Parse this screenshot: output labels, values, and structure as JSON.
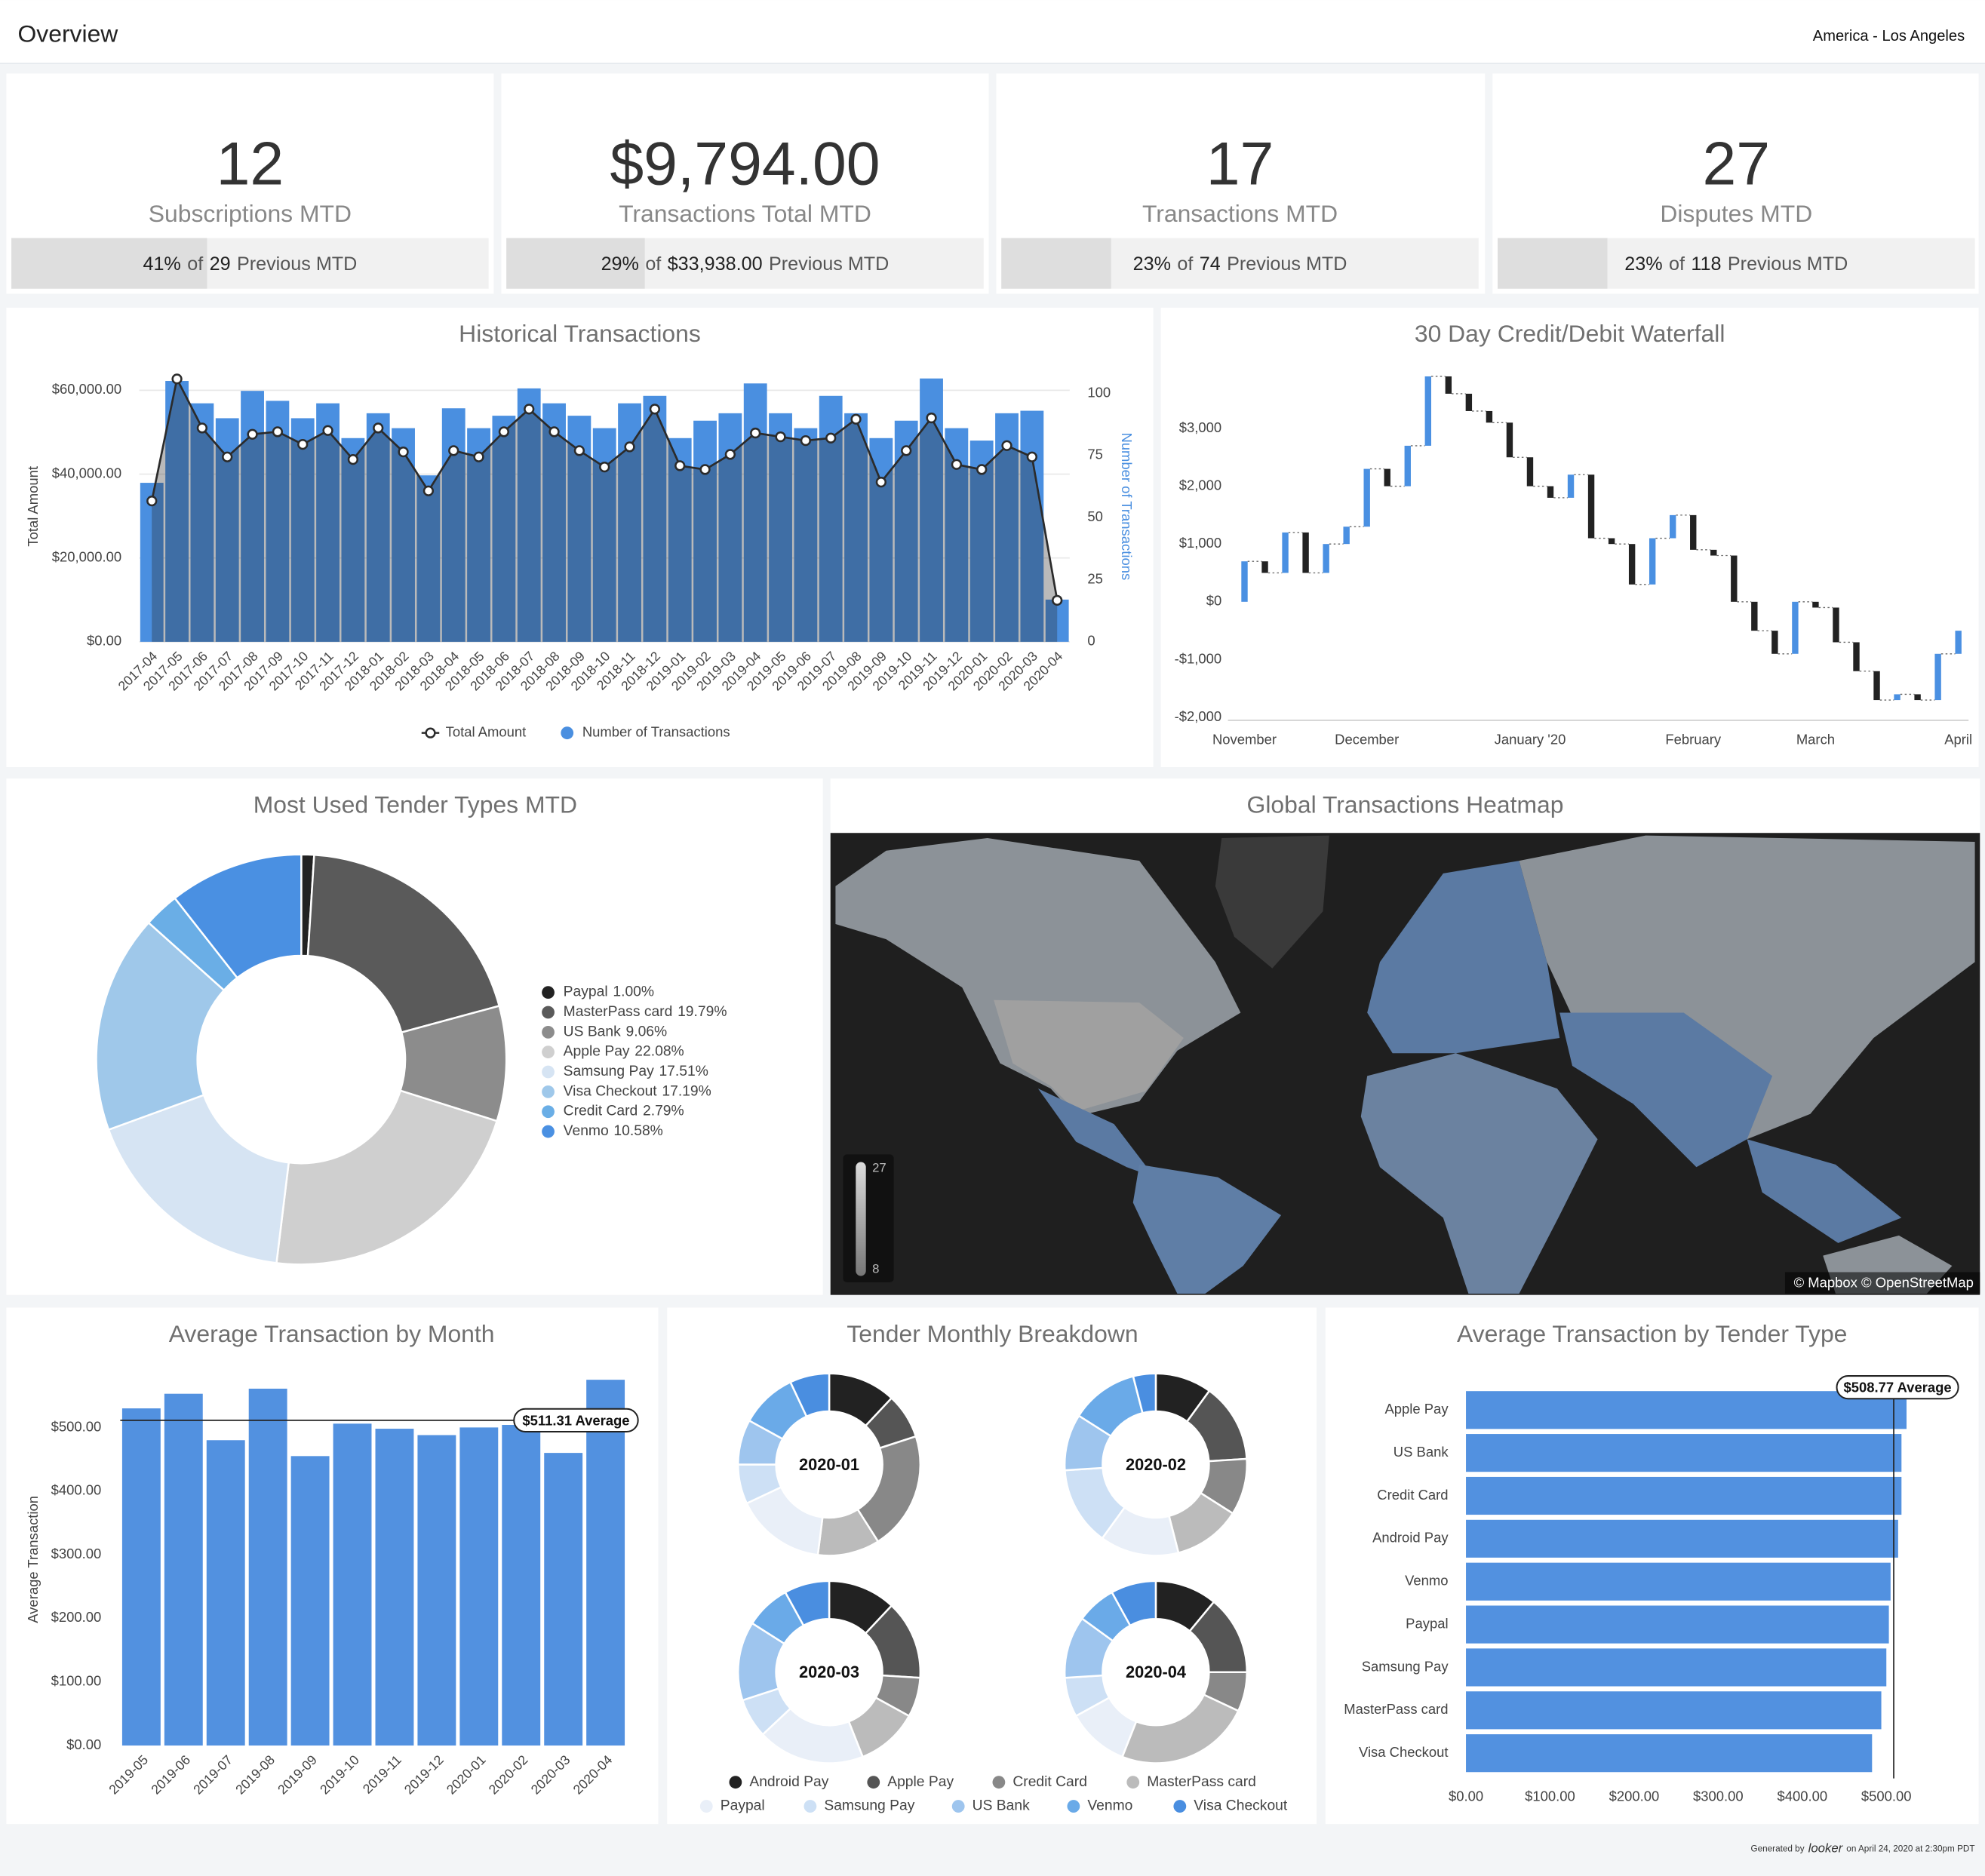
{
  "header": {
    "title": "Overview",
    "timezone": "America - Los Angeles"
  },
  "kpis": [
    {
      "value": "12",
      "label": "Subscriptions MTD",
      "percent": {
        "value": 41,
        "label": "41%"
      },
      "of": "of",
      "previous": "29",
      "suffix": "Previous MTD"
    },
    {
      "value": "$9,794.00",
      "label": "Transactions Total MTD",
      "percent": {
        "value": 29,
        "label": "29%"
      },
      "of": "of",
      "previous": "$33,938.00",
      "suffix": "Previous MTD"
    },
    {
      "value": "17",
      "label": "Transactions MTD",
      "percent": {
        "value": 23,
        "label": "23%"
      },
      "of": "of",
      "previous": "74",
      "suffix": "Previous MTD"
    },
    {
      "value": "27",
      "label": "Disputes MTD",
      "percent": {
        "value": 23,
        "label": "23%"
      },
      "of": "of",
      "previous": "118",
      "suffix": "Previous MTD"
    }
  ],
  "chart_data": [
    {
      "type": "combo",
      "title": "Historical Transactions",
      "categories": [
        "2017-04",
        "2017-05",
        "2017-06",
        "2017-07",
        "2017-08",
        "2017-09",
        "2017-10",
        "2017-11",
        "2017-12",
        "2018-01",
        "2018-02",
        "2018-03",
        "2018-04",
        "2018-05",
        "2018-06",
        "2018-07",
        "2018-08",
        "2018-09",
        "2018-10",
        "2018-11",
        "2018-12",
        "2019-01",
        "2019-02",
        "2019-03",
        "2019-04",
        "2019-05",
        "2019-06",
        "2019-07",
        "2019-08",
        "2019-09",
        "2019-10",
        "2019-11",
        "2019-12",
        "2020-01",
        "2020-02",
        "2020-03",
        "2020-04"
      ],
      "series": [
        {
          "name": "Total Amount",
          "type": "line",
          "color": "#2b2b2b",
          "values": [
            33600,
            62700,
            51000,
            44100,
            49500,
            50100,
            47100,
            50400,
            43500,
            51000,
            45300,
            36000,
            45600,
            44100,
            50100,
            55500,
            50100,
            45600,
            41700,
            46500,
            55500,
            42000,
            41100,
            44700,
            49800,
            48900,
            48000,
            48600,
            53100,
            38100,
            45600,
            53400,
            42300,
            41100,
            46800,
            44100,
            9900
          ]
        },
        {
          "name": "Number of Transactions",
          "type": "bar",
          "axis": "y2",
          "color": "#4a8fe0",
          "values": [
            64,
            105,
            96,
            90,
            101,
            97,
            90,
            96,
            82,
            92,
            86,
            67,
            94,
            86,
            91,
            102,
            96,
            91,
            86,
            96,
            99,
            82,
            89,
            92,
            104,
            92,
            86,
            99,
            92,
            82,
            89,
            106,
            86,
            81,
            92,
            93,
            17
          ]
        }
      ],
      "ylabel": "Total Amount",
      "y2label": "Number of Transactions",
      "ylim": [
        0,
        64000
      ],
      "yticks": [
        {
          "value": 0,
          "label": "$0.00"
        },
        {
          "value": 20000,
          "label": "$20,000.00"
        },
        {
          "value": 40000,
          "label": "$40,000.00"
        },
        {
          "value": 60000,
          "label": "$60,000.00"
        }
      ],
      "y2lim": [
        0,
        108
      ],
      "y2ticks": [
        0,
        25,
        50,
        75,
        100
      ],
      "grid": true
    },
    {
      "type": "waterfall",
      "title": "30 Day Credit/Debit Waterfall",
      "categories": [
        "November",
        null,
        null,
        null,
        null,
        null,
        "December",
        null,
        null,
        null,
        null,
        null,
        null,
        null,
        "January '20",
        null,
        null,
        null,
        null,
        null,
        null,
        null,
        "February",
        null,
        null,
        null,
        null,
        null,
        "March",
        null,
        null,
        null,
        null,
        null,
        null,
        "April"
      ],
      "values": [
        700,
        -200,
        700,
        -700,
        500,
        300,
        1000,
        -300,
        700,
        1200,
        -300,
        -300,
        -200,
        -600,
        -500,
        -200,
        400,
        -1100,
        -100,
        -700,
        800,
        400,
        -600,
        -100,
        -800,
        -500,
        -400,
        900,
        -100,
        -600,
        -500,
        -500,
        100,
        -100,
        800,
        400
      ],
      "colors": {
        "increase": "#4a90e2",
        "decrease": "#222222"
      },
      "ylim": [
        -2050,
        3950
      ],
      "yticks": [
        {
          "value": -2000,
          "label": "-$2,000"
        },
        {
          "value": -1000,
          "label": "-$1,000"
        },
        {
          "value": 0,
          "label": "$0"
        },
        {
          "value": 1000,
          "label": "$1,000"
        },
        {
          "value": 2000,
          "label": "$2,000"
        },
        {
          "value": 3000,
          "label": "$3,000"
        }
      ],
      "grid": false
    },
    {
      "type": "donut",
      "title": "Most Used Tender Types MTD",
      "categories": [
        "Paypal",
        "MasterPass card",
        "US Bank",
        "Apple Pay",
        "Samsung Pay",
        "Visa Checkout",
        "Credit Card",
        "Venmo"
      ],
      "values": [
        1.0,
        19.79,
        9.06,
        22.08,
        17.51,
        17.19,
        2.79,
        10.58
      ],
      "value_labels": [
        "1.00%",
        "19.79%",
        "9.06%",
        "22.08%",
        "17.51%",
        "17.19%",
        "2.79%",
        "10.58%"
      ],
      "colors": [
        "#222222",
        "#5a5a5a",
        "#8c8c8c",
        "#cfcfcf",
        "#d6e4f3",
        "#9fc8ea",
        "#6aaee6",
        "#4a90e2"
      ]
    },
    {
      "type": "bar",
      "title": "Average Transaction by Month",
      "categories": [
        "2019-05",
        "2019-06",
        "2019-07",
        "2019-08",
        "2019-09",
        "2019-10",
        "2019-11",
        "2019-12",
        "2020-01",
        "2020-02",
        "2020-03",
        "2020-04"
      ],
      "values": [
        530,
        553,
        480,
        561,
        455,
        506,
        498,
        488,
        500,
        504,
        460,
        575
      ],
      "color": "#5291e0",
      "ylabel": "Average Transaction",
      "ylim": [
        0,
        585
      ],
      "yticks": [
        {
          "value": 0,
          "label": "$0.00"
        },
        {
          "value": 100,
          "label": "$100.00"
        },
        {
          "value": 200,
          "label": "$200.00"
        },
        {
          "value": 300,
          "label": "$300.00"
        },
        {
          "value": 400,
          "label": "$400.00"
        },
        {
          "value": 500,
          "label": "$500.00"
        }
      ],
      "reference": {
        "value": 511.31,
        "label": "$511.31 Average"
      },
      "grid": false
    },
    {
      "type": "donuts",
      "title": "Tender Monthly Breakdown",
      "categories": [
        "Android Pay",
        "Apple Pay",
        "Credit Card",
        "MasterPass card",
        "Paypal",
        "Samsung Pay",
        "US Bank",
        "Venmo",
        "Visa Checkout"
      ],
      "colors": [
        "#222222",
        "#555555",
        "#888888",
        "#bbbbbb",
        "#e9eff8",
        "#cde0f5",
        "#9ec5ee",
        "#6aaae8",
        "#4a8ee0"
      ],
      "series": [
        {
          "name": "2020-01",
          "values": [
            12,
            8,
            21,
            11,
            16,
            7,
            8,
            10,
            7
          ]
        },
        {
          "name": "2020-02",
          "values": [
            10,
            14,
            10,
            12,
            14,
            14,
            10,
            12,
            4
          ]
        },
        {
          "name": "2020-03",
          "values": [
            12,
            14,
            7,
            11,
            19,
            7,
            14,
            8,
            8
          ]
        },
        {
          "name": "2020-04",
          "values": [
            11,
            14,
            7,
            24,
            11,
            7,
            11,
            7,
            8
          ]
        }
      ]
    },
    {
      "type": "hbar",
      "title": "Average Transaction by Tender Type",
      "categories": [
        "Apple Pay",
        "US Bank",
        "Credit Card",
        "Android Pay",
        "Venmo",
        "Paypal",
        "Samsung Pay",
        "MasterPass card",
        "Visa Checkout"
      ],
      "values": [
        524,
        518,
        518,
        514,
        505,
        503,
        500,
        494,
        483
      ],
      "color": "#5291e0",
      "xlim": [
        0,
        530
      ],
      "xticks": [
        {
          "value": 0,
          "label": "$0.00"
        },
        {
          "value": 100,
          "label": "$100.00"
        },
        {
          "value": 200,
          "label": "$200.00"
        },
        {
          "value": 300,
          "label": "$300.00"
        },
        {
          "value": 400,
          "label": "$400.00"
        },
        {
          "value": 500,
          "label": "$500.00"
        }
      ],
      "reference": {
        "value": 508.77,
        "label": "$508.77 Average"
      },
      "grid": false
    }
  ],
  "map": {
    "title": "Global Transactions Heatmap",
    "scale_max": 27,
    "scale_min": 8,
    "attribution": "© Mapbox © OpenStreetMap"
  },
  "footer": {
    "generated_by": "Generated by",
    "brand": "looker",
    "date": "on April 24, 2020 at 2:30pm PDT"
  }
}
